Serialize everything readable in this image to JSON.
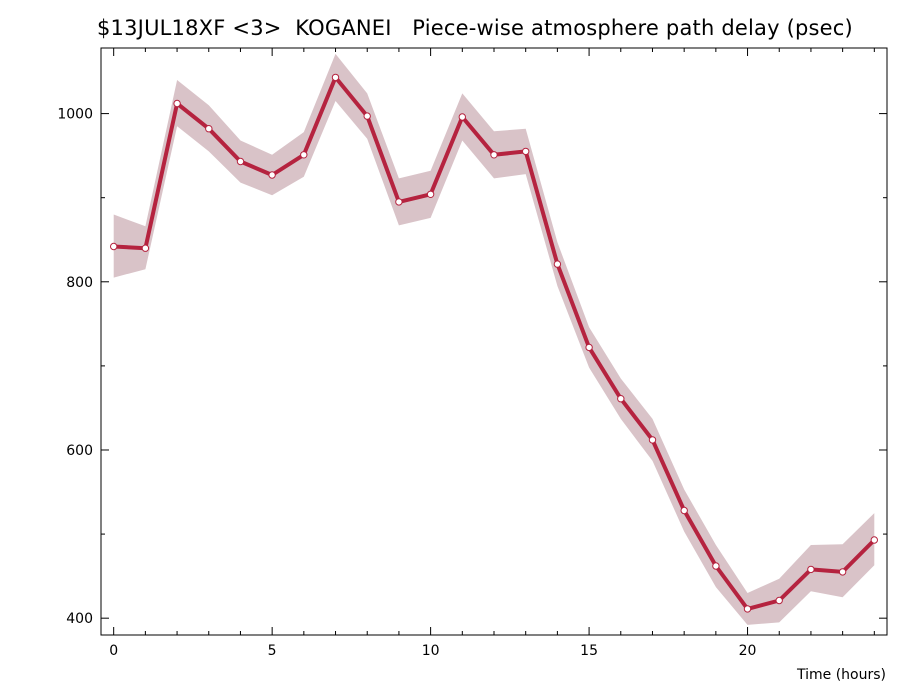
{
  "chart_data": {
    "type": "line",
    "title": "$13JUL18XF <3>  KOGANEI   Piece-wise atmosphere path delay (psec)",
    "xlabel": "Time (hours)",
    "ylabel": "",
    "xlim": [
      -0.4,
      24.4
    ],
    "ylim": [
      380,
      1078
    ],
    "x_ticks": [
      0,
      5,
      10,
      15,
      20
    ],
    "y_ticks": [
      400,
      600,
      800,
      1000
    ],
    "grid": false,
    "colors": {
      "line": "#b5233f",
      "band": "#d9c3c8",
      "marker_fill": "#ffffff"
    },
    "series": [
      {
        "x": [
          0,
          1,
          2,
          3,
          4,
          5,
          6,
          7,
          8,
          9,
          10,
          11,
          12,
          13,
          14,
          15,
          16,
          17,
          18,
          19,
          20,
          21,
          22,
          23,
          24
        ],
        "values": [
          842,
          840,
          1012,
          982,
          943,
          927,
          951,
          1043,
          997,
          895,
          904,
          996,
          951,
          955,
          821,
          722,
          661,
          612,
          528,
          462,
          411,
          421,
          458,
          455,
          493
        ],
        "lower": [
          805,
          815,
          985,
          955,
          918,
          903,
          925,
          1015,
          970,
          867,
          876,
          968,
          923,
          928,
          795,
          698,
          637,
          587,
          503,
          437,
          392,
          395,
          432,
          425,
          463
        ],
        "upper": [
          880,
          866,
          1040,
          1010,
          968,
          951,
          978,
          1071,
          1024,
          923,
          932,
          1024,
          979,
          982,
          847,
          746,
          685,
          637,
          553,
          487,
          430,
          447,
          487,
          488,
          525
        ]
      }
    ]
  }
}
